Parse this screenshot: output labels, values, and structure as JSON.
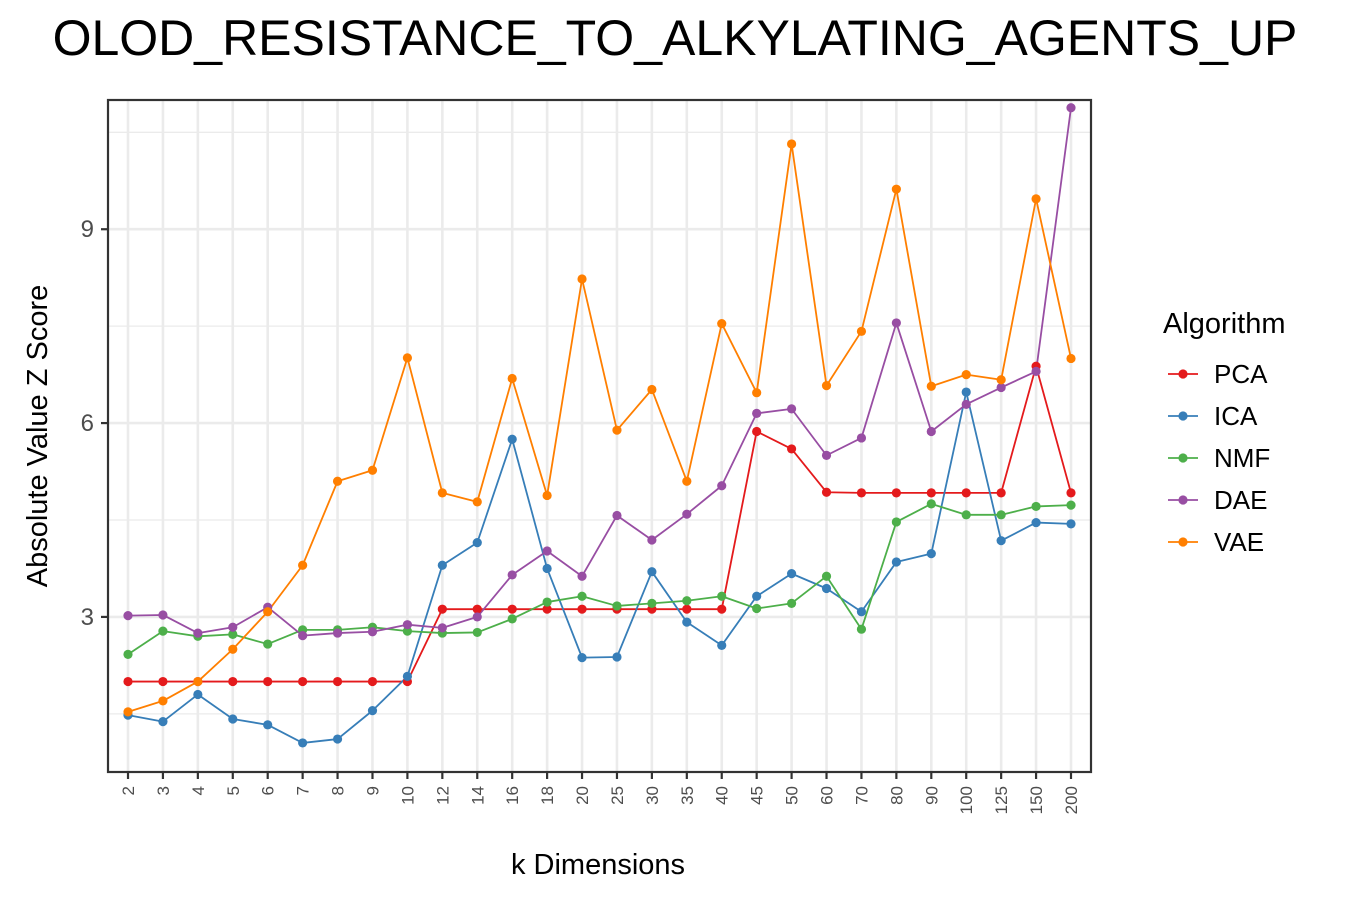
{
  "chart_data": {
    "type": "line",
    "title": "OLOD_RESISTANCE_TO_ALKYLATING_AGENTS_UP",
    "xlabel": "k Dimensions",
    "ylabel": "Absolute Value Z Score",
    "categories": [
      "2",
      "3",
      "4",
      "5",
      "6",
      "7",
      "8",
      "9",
      "10",
      "12",
      "14",
      "16",
      "18",
      "20",
      "25",
      "30",
      "35",
      "40",
      "45",
      "50",
      "60",
      "70",
      "80",
      "90",
      "100",
      "125",
      "150",
      "200"
    ],
    "ylim": [
      0.6,
      11.0
    ],
    "y_ticks": [
      3,
      6,
      9
    ],
    "grid": true,
    "legend": {
      "title": "Algorithm",
      "position": "right"
    },
    "series": [
      {
        "name": "PCA",
        "color": "#E41A1C",
        "values": [
          2.0,
          2.0,
          2.0,
          2.0,
          2.0,
          2.0,
          2.0,
          2.0,
          2.0,
          3.12,
          3.12,
          3.12,
          3.12,
          3.12,
          3.12,
          3.12,
          3.12,
          3.12,
          5.87,
          5.6,
          4.93,
          4.92,
          4.92,
          4.92,
          4.92,
          4.92,
          6.88,
          4.92
        ]
      },
      {
        "name": "ICA",
        "color": "#377EB8",
        "values": [
          1.48,
          1.38,
          1.8,
          1.42,
          1.33,
          1.05,
          1.11,
          1.55,
          2.08,
          3.8,
          4.15,
          5.75,
          3.75,
          2.37,
          2.38,
          3.7,
          2.92,
          2.56,
          3.32,
          3.67,
          3.44,
          3.08,
          3.85,
          3.98,
          6.48,
          4.18,
          4.46,
          4.44
        ]
      },
      {
        "name": "NMF",
        "color": "#4DAF4A",
        "values": [
          2.42,
          2.78,
          2.7,
          2.73,
          2.58,
          2.8,
          2.8,
          2.84,
          2.78,
          2.75,
          2.76,
          2.97,
          3.23,
          3.32,
          3.17,
          3.21,
          3.25,
          3.32,
          3.13,
          3.21,
          3.63,
          2.81,
          4.47,
          4.75,
          4.58,
          4.58,
          4.71,
          4.73
        ]
      },
      {
        "name": "DAE",
        "color": "#984EA3",
        "values": [
          3.02,
          3.03,
          2.75,
          2.84,
          3.15,
          2.71,
          2.75,
          2.77,
          2.88,
          2.83,
          3.0,
          3.65,
          4.02,
          3.63,
          4.57,
          4.19,
          4.59,
          5.03,
          6.15,
          6.22,
          5.5,
          5.77,
          7.55,
          5.87,
          6.29,
          6.55,
          6.8,
          10.88
        ]
      },
      {
        "name": "VAE",
        "color": "#FF7F00",
        "values": [
          1.53,
          1.7,
          2.0,
          2.5,
          3.08,
          3.8,
          5.1,
          5.27,
          7.01,
          4.92,
          4.78,
          6.69,
          4.88,
          8.23,
          5.89,
          6.52,
          5.1,
          7.54,
          6.47,
          10.32,
          6.58,
          7.42,
          9.62,
          6.57,
          6.75,
          6.67,
          9.47,
          7.0
        ]
      }
    ]
  }
}
